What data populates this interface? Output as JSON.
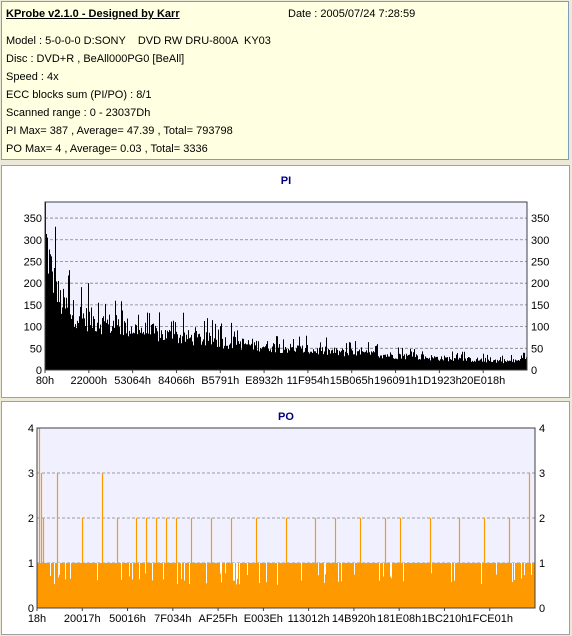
{
  "info": {
    "title": "KProbe v2.1.0 - Designed by Karr",
    "date": "Date : 2005/07/24 7:28:59",
    "lines": [
      "Model : 5-0-0-0 D:SONY    DVD RW DRU-800A  KY03",
      "Disc : DVD+R , BeAll000PG0 [BeAll]",
      "Speed : 4x",
      "ECC blocks sum (PI/PO) : 8/1",
      "Scanned range : 0 - 23037Dh",
      "PI Max= 387 , Average= 47.39 , Total= 793798",
      "PO Max= 4 , Average= 0.03 , Total= 3336"
    ]
  },
  "colors": {
    "pi_bars": "#000000",
    "po_bars": "#ff9900",
    "title_blue": "#000080",
    "plot_bg": "#f0f0ff"
  },
  "chart_data": [
    {
      "type": "bar",
      "title": "PI",
      "xlabel": "",
      "ylabel": "",
      "ylim": [
        0,
        387
      ],
      "yticks": [
        0,
        50,
        100,
        150,
        200,
        250,
        300,
        350
      ],
      "xticks": [
        "80h",
        "22000h",
        "53064h",
        "84066h",
        "B5791h",
        "E8932h",
        "11F954h",
        "15B065h",
        "196091h",
        "1D1923h",
        "20E018h"
      ],
      "grid": true,
      "max": 387,
      "average": 47.39,
      "envelope": [
        [
          0.0,
          385
        ],
        [
          0.01,
          300
        ],
        [
          0.02,
          240
        ],
        [
          0.03,
          200
        ],
        [
          0.05,
          170
        ],
        [
          0.08,
          150
        ],
        [
          0.12,
          135
        ],
        [
          0.18,
          120
        ],
        [
          0.25,
          100
        ],
        [
          0.35,
          85
        ],
        [
          0.45,
          70
        ],
        [
          0.55,
          57
        ],
        [
          0.65,
          48
        ],
        [
          0.75,
          40
        ],
        [
          0.85,
          32
        ],
        [
          0.92,
          28
        ],
        [
          0.97,
          25
        ],
        [
          1.0,
          30
        ]
      ],
      "spikes": [
        [
          0.02,
          330
        ],
        [
          0.05,
          230
        ],
        [
          0.09,
          200
        ],
        [
          0.11,
          155
        ]
      ]
    },
    {
      "type": "bar",
      "title": "PO",
      "xlabel": "",
      "ylabel": "",
      "ylim": [
        0,
        4
      ],
      "yticks": [
        0,
        1,
        2,
        3,
        4
      ],
      "xticks": [
        "18h",
        "20017h",
        "50016h",
        "7F034h",
        "AF25Fh",
        "E003Eh",
        "113012h",
        "14B920h",
        "181E08h",
        "1BC210h",
        "1FCE01h"
      ],
      "grid": true,
      "max": 4,
      "average": 0.03,
      "spikes": [
        [
          0.005,
          4
        ],
        [
          0.008,
          3
        ],
        [
          0.012,
          2
        ],
        [
          0.04,
          3
        ],
        [
          0.09,
          2
        ],
        [
          0.13,
          3
        ],
        [
          0.16,
          2
        ],
        [
          0.2,
          2
        ],
        [
          0.22,
          2
        ],
        [
          0.24,
          2
        ],
        [
          0.26,
          2
        ],
        [
          0.28,
          2
        ],
        [
          0.31,
          2
        ],
        [
          0.35,
          2
        ],
        [
          0.39,
          2
        ],
        [
          0.44,
          2
        ],
        [
          0.5,
          2
        ],
        [
          0.56,
          2
        ],
        [
          0.6,
          2
        ],
        [
          0.65,
          2
        ],
        [
          0.7,
          2
        ],
        [
          0.73,
          2
        ],
        [
          0.79,
          2
        ],
        [
          0.85,
          2
        ],
        [
          0.9,
          2
        ],
        [
          0.95,
          2
        ],
        [
          0.99,
          3
        ]
      ]
    }
  ]
}
